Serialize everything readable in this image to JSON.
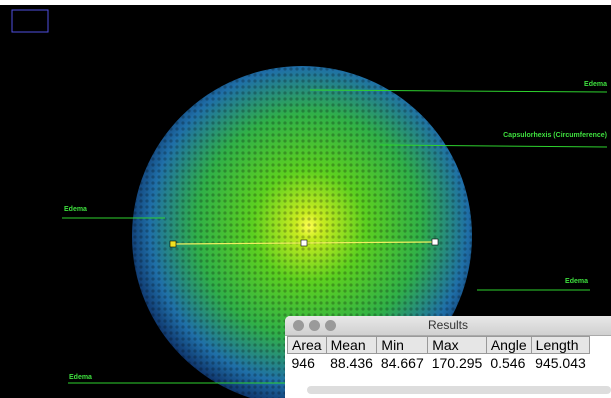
{
  "image": {
    "annotations": [
      "Edema",
      "Capsulorhexis (Circumference)",
      "Edema",
      "Edema",
      "Edema"
    ]
  },
  "results_window": {
    "title": "Results",
    "columns": [
      "Area",
      "Mean",
      "Min",
      "Max",
      "Angle",
      "Length"
    ],
    "rows": [
      [
        "946",
        "88.436",
        "84.667",
        "170.295",
        "0.546",
        "945.043"
      ]
    ]
  }
}
